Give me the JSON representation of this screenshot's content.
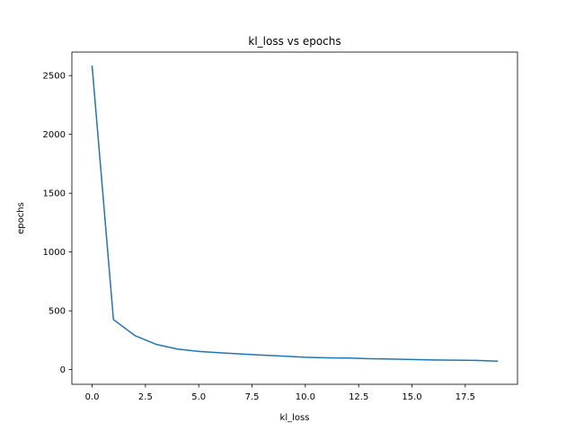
{
  "chart_data": {
    "type": "line",
    "title": "kl_loss vs epochs",
    "xlabel": "kl_loss",
    "ylabel": "epochs",
    "xlim": [
      -0.95,
      19.95
    ],
    "ylim": [
      -125,
      2700
    ],
    "xticks": [
      0.0,
      2.5,
      5.0,
      7.5,
      10.0,
      12.5,
      15.0,
      17.5
    ],
    "xtick_labels": [
      "0.0",
      "2.5",
      "5.0",
      "7.5",
      "10.0",
      "12.5",
      "15.0",
      "17.5"
    ],
    "yticks": [
      0,
      500,
      1000,
      1500,
      2000,
      2500
    ],
    "ytick_labels": [
      "0",
      "500",
      "1000",
      "1500",
      "2000",
      "2500"
    ],
    "grid": false,
    "series": [
      {
        "color": "#1f77b4",
        "x": [
          0,
          1,
          2,
          3,
          4,
          5,
          6,
          7,
          8,
          9,
          10,
          11,
          12,
          13,
          14,
          15,
          16,
          17,
          18,
          19
        ],
        "y": [
          2580,
          425,
          290,
          215,
          175,
          155,
          143,
          133,
          123,
          115,
          105,
          100,
          98,
          93,
          90,
          86,
          82,
          80,
          78,
          72
        ]
      }
    ]
  }
}
